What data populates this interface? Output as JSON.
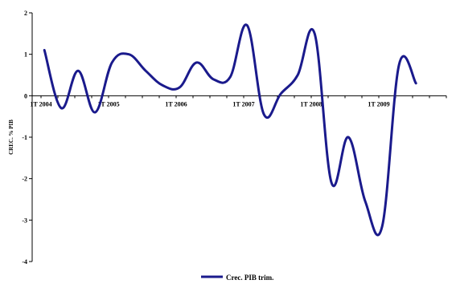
{
  "chart_data": {
    "type": "line",
    "title": "",
    "xlabel": "",
    "ylabel": "CREC. % PIB",
    "ylim": [
      -4,
      2
    ],
    "yticks": [
      2,
      1,
      0,
      -1,
      -2,
      -3,
      -4
    ],
    "xtick_labels": [
      "1T 2004",
      "1T 2005",
      "1T 2006",
      "1T 2007",
      "1T 2008",
      "1T 2009"
    ],
    "grid": false,
    "legend_position": "bottom",
    "series_color": "#1a1a8c",
    "series": [
      {
        "name": "Crec. PIB trim.",
        "x": [
          "1T 2004",
          "2T 2004",
          "3T 2004",
          "4T 2004",
          "1T 2005",
          "2T 2005",
          "3T 2005",
          "4T 2005",
          "1T 2006",
          "2T 2006",
          "3T 2006",
          "4T 2006",
          "1T 2007",
          "2T 2007",
          "3T 2007",
          "4T 2007",
          "1T 2008",
          "2T 2008",
          "3T 2008",
          "4T 2008",
          "1T 2009",
          "2T 2009",
          "3T 2009"
        ],
        "values": [
          1.1,
          -0.3,
          0.6,
          -0.4,
          0.8,
          1.0,
          0.6,
          0.25,
          0.2,
          0.8,
          0.4,
          0.45,
          1.7,
          -0.45,
          0.05,
          0.5,
          1.5,
          -2.1,
          -1.0,
          -2.55,
          -3.15,
          0.75,
          0.3
        ]
      }
    ]
  }
}
